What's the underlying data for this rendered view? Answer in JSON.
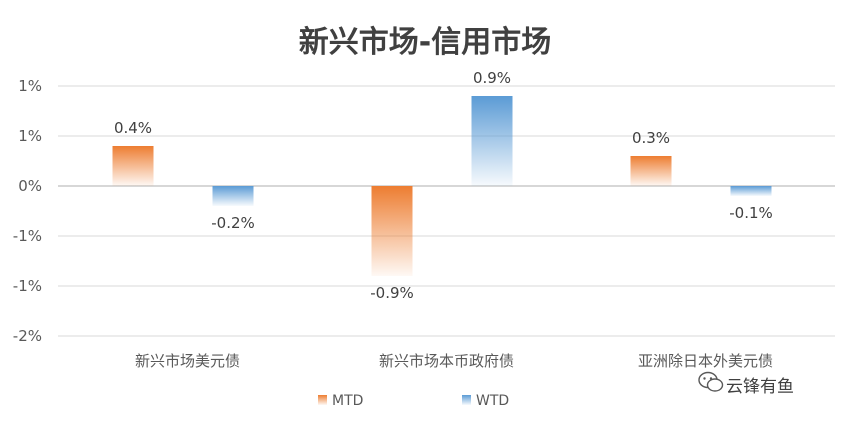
{
  "chart_data": {
    "type": "bar",
    "title": "新兴市场-信用市场",
    "categories": [
      "新兴市场美元债",
      "新兴市场本币政府债",
      "亚洲除日本外美元债"
    ],
    "series": [
      {
        "name": "MTD",
        "values": [
          0.4,
          -0.9,
          0.3
        ],
        "labels": [
          "0.4%",
          "-0.9%",
          "0.3%"
        ],
        "color": "#ed7d31"
      },
      {
        "name": "WTD",
        "values": [
          -0.2,
          0.9,
          -0.1
        ],
        "labels": [
          "-0.2%",
          "0.9%",
          "-0.1%"
        ],
        "color": "#5b9bd5"
      }
    ],
    "y_ticks": [
      1.0,
      0.5,
      0.0,
      -0.5,
      -1.0,
      -1.5
    ],
    "y_tick_labels": [
      "1%",
      "1%",
      "0%",
      "-1%",
      "-1%",
      "-2%"
    ],
    "ylim": [
      -1.5,
      1.0
    ],
    "grid": true,
    "legend_position": "bottom"
  },
  "watermark": {
    "text": "云锋有鱼",
    "icon": "wechat-icon"
  }
}
